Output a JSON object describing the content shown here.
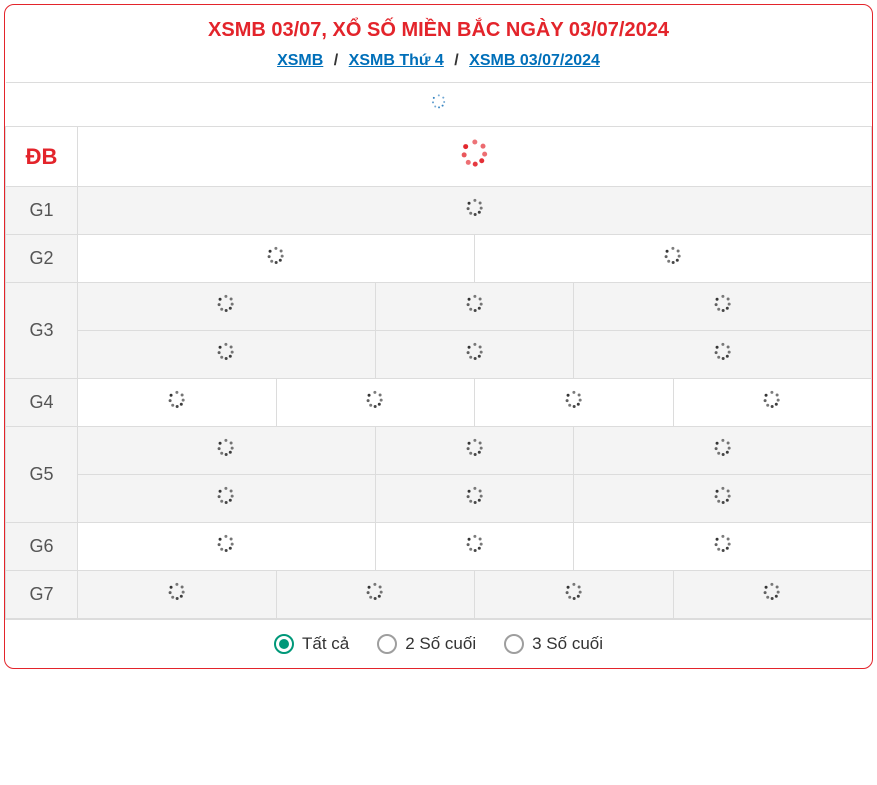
{
  "header": {
    "title": "XSMB 03/07, XỔ SỐ MIỀN BẮC NGÀY 03/07/2024",
    "breadcrumb": {
      "link1": "XSMB",
      "link2": "XSMB Thứ 4",
      "link3": "XSMB 03/07/2024",
      "sep": "/"
    }
  },
  "colors": {
    "accent": "#e3242b",
    "link": "#006fb9",
    "radio_checked": "#009879",
    "border": "#dcdcdc",
    "row_alt": "#f4f4f4",
    "spinner_default": "#333333",
    "spinner_blue": "#2f7fbf"
  },
  "prizes": {
    "db": {
      "label": "ĐB",
      "cols": 1,
      "rows": 1,
      "spinner": "red-lg"
    },
    "g1": {
      "label": "G1",
      "cols": 1,
      "rows": 1
    },
    "g2": {
      "label": "G2",
      "cols": 2,
      "rows": 1
    },
    "g3": {
      "label": "G3",
      "cols": 3,
      "rows": 2
    },
    "g4": {
      "label": "G4",
      "cols": 4,
      "rows": 1
    },
    "g5": {
      "label": "G5",
      "cols": 3,
      "rows": 2
    },
    "g6": {
      "label": "G6",
      "cols": 3,
      "rows": 1
    },
    "g7": {
      "label": "G7",
      "cols": 4,
      "rows": 1
    }
  },
  "top_spinner": "blue-md",
  "filters": {
    "options": [
      {
        "label": "Tất cả",
        "checked": true
      },
      {
        "label": "2 Số cuối",
        "checked": false
      },
      {
        "label": "3 Số cuối",
        "checked": false
      }
    ]
  }
}
